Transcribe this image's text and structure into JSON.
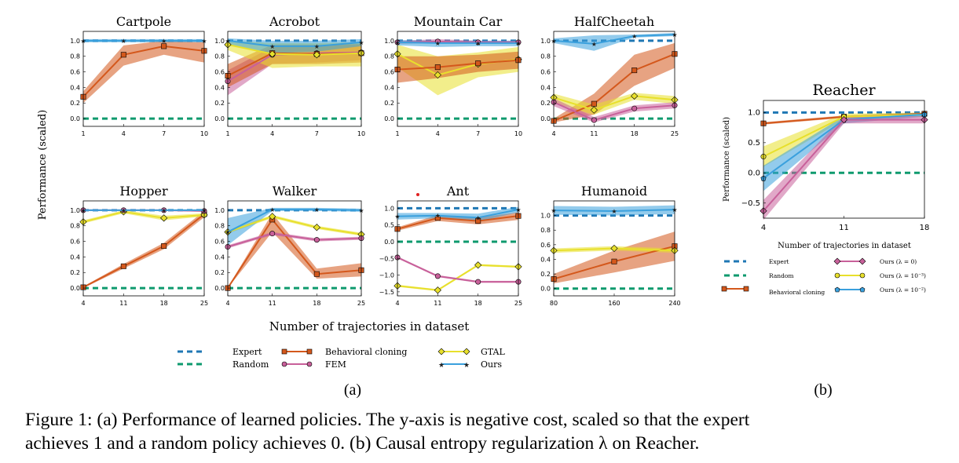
{
  "figure": {
    "ylabel": "Performance (scaled)",
    "xlabel": "Number of trajectories in dataset",
    "sublabel_a": "(a)",
    "sublabel_b": "(b)",
    "reacher_xlabel": "Number of trajectories in dataset"
  },
  "caption": {
    "line1": "Figure 1: (a) Performance of learned policies. The y-axis is negative cost, scaled so that the expert",
    "line2": "achieves 1 and a random policy achieves 0. (b) Causal entropy regularization λ on Reacher."
  },
  "colors": {
    "expert": "#1f77b4",
    "random": "#0e9a6e",
    "bc": "#d4581c",
    "fem": "#c8609a",
    "gtal": "#e8e02c",
    "ours": "#3aa0dd",
    "lam0": "#c8609a",
    "lam2": "#e8e02c",
    "lam1": "#3aa0dd"
  },
  "legend_a": {
    "expert": "Expert",
    "random": "Random",
    "bc": "Behavioral cloning",
    "fem": "FEM",
    "gtal": "GTAL",
    "ours": "Ours"
  },
  "legend_b": {
    "expert": "Expert",
    "random": "Random",
    "bc": "Behavioral cloning",
    "lam0": "Ours (λ = 0)",
    "lam2": "Ours (λ = 10⁻³)",
    "lam1": "Ours (λ = 10⁻²)"
  },
  "chart_data": [
    {
      "type": "line",
      "title": "Cartpole",
      "x": [
        1,
        4,
        7,
        10
      ],
      "xticks": [
        "1",
        "4",
        "7",
        "10"
      ],
      "ylim": [
        -0.1,
        1.12
      ],
      "yticks": [
        0.0,
        0.2,
        0.4,
        0.6,
        0.8,
        1.0
      ],
      "ytick_labels": [
        "0.0",
        "0.2",
        "0.4",
        "0.6",
        "0.8",
        "1.0"
      ],
      "series": [
        {
          "name": "Behavioral cloning",
          "key": "bc",
          "values": [
            0.28,
            0.82,
            0.93,
            0.87
          ],
          "lo": [
            0.2,
            0.68,
            0.82,
            0.72
          ],
          "hi": [
            0.35,
            0.94,
            1.0,
            0.98
          ]
        },
        {
          "name": "Ours",
          "key": "ours",
          "values": [
            1.0,
            1.0,
            1.0,
            1.0
          ],
          "lo": [
            0.98,
            0.98,
            0.98,
            0.98
          ],
          "hi": [
            1.02,
            1.02,
            1.02,
            1.02
          ]
        }
      ]
    },
    {
      "type": "line",
      "title": "Acrobot",
      "x": [
        1,
        4,
        7,
        10
      ],
      "xticks": [
        "1",
        "4",
        "7",
        "10"
      ],
      "ylim": [
        -0.1,
        1.12
      ],
      "yticks": [
        0.0,
        0.2,
        0.4,
        0.6,
        0.8,
        1.0
      ],
      "ytick_labels": [
        "0.0",
        "0.2",
        "0.4",
        "0.6",
        "0.8",
        "1.0"
      ],
      "series": [
        {
          "name": "FEM",
          "key": "fem",
          "values": [
            0.48,
            0.82,
            0.84,
            0.85
          ],
          "lo": [
            0.3,
            0.7,
            0.72,
            0.75
          ],
          "hi": [
            0.62,
            0.92,
            0.94,
            0.95
          ]
        },
        {
          "name": "Behavioral cloning",
          "key": "bc",
          "values": [
            0.55,
            0.84,
            0.83,
            0.84
          ],
          "lo": [
            0.4,
            0.7,
            0.7,
            0.72
          ],
          "hi": [
            0.7,
            0.95,
            0.95,
            0.96
          ]
        },
        {
          "name": "GTAL",
          "key": "gtal",
          "values": [
            0.95,
            0.83,
            0.82,
            0.84
          ],
          "lo": [
            0.88,
            0.65,
            0.67,
            0.67
          ],
          "hi": [
            1.0,
            0.97,
            0.97,
            0.98
          ]
        },
        {
          "name": "Ours",
          "key": "ours",
          "values": [
            1.0,
            0.93,
            0.93,
            0.98
          ],
          "lo": [
            0.95,
            0.84,
            0.86,
            0.93
          ],
          "hi": [
            1.03,
            1.0,
            1.0,
            1.02
          ]
        }
      ]
    },
    {
      "type": "line",
      "title": "Mountain Car",
      "x": [
        1,
        4,
        7,
        10
      ],
      "xticks": [
        "1",
        "4",
        "7",
        "10"
      ],
      "ylim": [
        -0.1,
        1.12
      ],
      "yticks": [
        0.0,
        0.2,
        0.4,
        0.6,
        0.8,
        1.0
      ],
      "ytick_labels": [
        "0.0",
        "0.2",
        "0.4",
        "0.6",
        "0.8",
        "1.0"
      ],
      "series": [
        {
          "name": "GTAL",
          "key": "gtal",
          "values": [
            0.83,
            0.56,
            0.7,
            0.76
          ],
          "lo": [
            0.66,
            0.3,
            0.53,
            0.6
          ],
          "hi": [
            0.95,
            0.8,
            0.85,
            0.92
          ]
        },
        {
          "name": "Behavioral cloning",
          "key": "bc",
          "values": [
            0.63,
            0.66,
            0.71,
            0.75
          ],
          "lo": [
            0.46,
            0.52,
            0.6,
            0.64
          ],
          "hi": [
            0.8,
            0.8,
            0.82,
            0.86
          ]
        },
        {
          "name": "FEM",
          "key": "fem",
          "values": [
            0.98,
            0.99,
            0.98,
            0.98
          ],
          "lo": [
            0.96,
            0.97,
            0.96,
            0.96
          ],
          "hi": [
            1.0,
            1.02,
            1.0,
            1.0
          ]
        },
        {
          "name": "Ours",
          "key": "ours",
          "values": [
            0.98,
            0.97,
            0.97,
            0.97
          ],
          "lo": [
            0.94,
            0.92,
            0.93,
            0.93
          ],
          "hi": [
            1.01,
            1.0,
            1.0,
            1.0
          ]
        }
      ]
    },
    {
      "type": "line",
      "title": "HalfCheetah",
      "x": [
        4,
        11,
        18,
        25
      ],
      "xticks": [
        "4",
        "11",
        "18",
        "25"
      ],
      "ylim": [
        -0.1,
        1.12
      ],
      "yticks": [
        0.0,
        0.2,
        0.4,
        0.6,
        0.8,
        1.0
      ],
      "ytick_labels": [
        "0.0",
        "0.2",
        "0.4",
        "0.6",
        "0.8",
        "1.0"
      ],
      "series": [
        {
          "name": "Behavioral cloning",
          "key": "bc",
          "values": [
            -0.03,
            0.19,
            0.62,
            0.83
          ],
          "lo": [
            -0.05,
            0.05,
            0.42,
            0.65
          ],
          "hi": [
            0.0,
            0.32,
            0.82,
            0.97
          ]
        },
        {
          "name": "GTAL",
          "key": "gtal",
          "values": [
            0.27,
            0.11,
            0.29,
            0.24
          ],
          "lo": [
            0.2,
            0.05,
            0.24,
            0.19
          ],
          "hi": [
            0.32,
            0.18,
            0.33,
            0.29
          ]
        },
        {
          "name": "FEM",
          "key": "fem",
          "values": [
            0.21,
            -0.02,
            0.13,
            0.17
          ],
          "lo": [
            0.16,
            -0.05,
            0.09,
            0.13
          ],
          "hi": [
            0.26,
            0.02,
            0.17,
            0.21
          ]
        },
        {
          "name": "Ours",
          "key": "ours",
          "values": [
            1.0,
            0.96,
            1.06,
            1.08
          ],
          "lo": [
            0.97,
            0.87,
            1.04,
            1.06
          ],
          "hi": [
            1.03,
            1.07,
            1.08,
            1.1
          ]
        }
      ]
    },
    {
      "type": "line",
      "title": "Hopper",
      "x": [
        4,
        11,
        18,
        25
      ],
      "xticks": [
        "4",
        "11",
        "18",
        "25"
      ],
      "ylim": [
        -0.1,
        1.12
      ],
      "yticks": [
        0.0,
        0.2,
        0.4,
        0.6,
        0.8,
        1.0
      ],
      "ytick_labels": [
        "0.0",
        "0.2",
        "0.4",
        "0.6",
        "0.8",
        "1.0"
      ],
      "series": [
        {
          "name": "Behavioral cloning",
          "key": "bc",
          "values": [
            0.01,
            0.28,
            0.54,
            0.95
          ],
          "lo": [
            0.0,
            0.25,
            0.5,
            0.91
          ],
          "hi": [
            0.02,
            0.31,
            0.58,
            0.99
          ]
        },
        {
          "name": "GTAL",
          "key": "gtal",
          "values": [
            0.85,
            0.98,
            0.9,
            0.94
          ],
          "lo": [
            0.83,
            0.96,
            0.87,
            0.92
          ],
          "hi": [
            0.87,
            1.0,
            0.93,
            0.96
          ]
        },
        {
          "name": "FEM",
          "key": "fem",
          "values": [
            1.0,
            1.0,
            1.0,
            0.99
          ],
          "lo": [
            0.99,
            0.99,
            0.99,
            0.98
          ],
          "hi": [
            1.01,
            1.01,
            1.01,
            1.0
          ]
        },
        {
          "name": "Ours",
          "key": "ours",
          "values": [
            1.0,
            1.0,
            1.0,
            1.0
          ],
          "lo": [
            0.99,
            0.99,
            0.99,
            0.99
          ],
          "hi": [
            1.01,
            1.01,
            1.01,
            1.01
          ]
        }
      ]
    },
    {
      "type": "line",
      "title": "Walker",
      "x": [
        4,
        11,
        18,
        25
      ],
      "xticks": [
        "4",
        "11",
        "18",
        "25"
      ],
      "ylim": [
        -0.1,
        1.12
      ],
      "yticks": [
        0.0,
        0.2,
        0.4,
        0.6,
        0.8,
        1.0
      ],
      "ytick_labels": [
        "0.0",
        "0.2",
        "0.4",
        "0.6",
        "0.8",
        "1.0"
      ],
      "series": [
        {
          "name": "Behavioral cloning",
          "key": "bc",
          "values": [
            0.0,
            0.88,
            0.18,
            0.23
          ],
          "lo": [
            0.0,
            0.72,
            0.12,
            0.15
          ],
          "hi": [
            0.01,
            0.96,
            0.25,
            0.32
          ]
        },
        {
          "name": "GTAL",
          "key": "gtal",
          "values": [
            0.72,
            0.92,
            0.78,
            0.69
          ],
          "lo": [
            0.7,
            0.9,
            0.76,
            0.67
          ],
          "hi": [
            0.74,
            0.94,
            0.8,
            0.71
          ]
        },
        {
          "name": "FEM",
          "key": "fem",
          "values": [
            0.53,
            0.7,
            0.62,
            0.64
          ],
          "lo": [
            0.51,
            0.68,
            0.6,
            0.62
          ],
          "hi": [
            0.55,
            0.72,
            0.64,
            0.66
          ]
        },
        {
          "name": "Ours",
          "key": "ours",
          "values": [
            0.72,
            1.01,
            1.01,
            1.0
          ],
          "lo": [
            0.55,
            0.99,
            0.99,
            0.98
          ],
          "hi": [
            0.9,
            1.03,
            1.03,
            1.02
          ]
        }
      ]
    },
    {
      "type": "line",
      "title": "Ant",
      "x": [
        4,
        11,
        18,
        25
      ],
      "xticks": [
        "4",
        "11",
        "18",
        "25"
      ],
      "ylim": [
        -1.62,
        1.22
      ],
      "yticks": [
        -1.5,
        -1.0,
        -0.5,
        0.0,
        0.5,
        1.0
      ],
      "ytick_labels": [
        "−1.5",
        "−1.0",
        "−0.5",
        "0.0",
        "0.5",
        "1.0"
      ],
      "series": [
        {
          "name": "Behavioral cloning",
          "key": "bc",
          "values": [
            0.38,
            0.71,
            0.62,
            0.77
          ],
          "lo": [
            0.33,
            0.62,
            0.52,
            0.65
          ],
          "hi": [
            0.43,
            0.8,
            0.72,
            0.88
          ]
        },
        {
          "name": "GTAL",
          "key": "gtal",
          "values": [
            -1.32,
            -1.45,
            -0.7,
            -0.75
          ],
          "lo": [
            -1.35,
            -1.48,
            -0.73,
            -0.78
          ],
          "hi": [
            -1.29,
            -1.42,
            -0.67,
            -0.72
          ]
        },
        {
          "name": "FEM",
          "key": "fem",
          "values": [
            -0.47,
            -1.03,
            -1.2,
            -1.2
          ],
          "lo": [
            -0.5,
            -1.06,
            -1.23,
            -1.23
          ],
          "hi": [
            -0.44,
            -1.0,
            -1.17,
            -1.17
          ]
        },
        {
          "name": "Ours",
          "key": "ours",
          "values": [
            0.76,
            0.78,
            0.72,
            0.96
          ],
          "lo": [
            0.66,
            0.7,
            0.6,
            0.88
          ],
          "hi": [
            0.86,
            0.86,
            0.84,
            1.04
          ]
        }
      ]
    },
    {
      "type": "line",
      "title": "Humanoid",
      "x": [
        80,
        160,
        240
      ],
      "xticks": [
        "80",
        "160",
        "240"
      ],
      "ylim": [
        -0.1,
        1.2
      ],
      "yticks": [
        0.0,
        0.2,
        0.4,
        0.6,
        0.8,
        1.0
      ],
      "ytick_labels": [
        "0.0",
        "0.2",
        "0.4",
        "0.6",
        "0.8",
        "1.0"
      ],
      "series": [
        {
          "name": "Behavioral cloning",
          "key": "bc",
          "values": [
            0.13,
            0.37,
            0.58
          ],
          "lo": [
            0.07,
            0.22,
            0.38
          ],
          "hi": [
            0.2,
            0.52,
            0.78
          ]
        },
        {
          "name": "GTAL",
          "key": "gtal",
          "values": [
            0.52,
            0.55,
            0.52
          ],
          "lo": [
            0.49,
            0.52,
            0.49
          ],
          "hi": [
            0.55,
            0.58,
            0.55
          ]
        },
        {
          "name": "Ours",
          "key": "ours",
          "values": [
            1.07,
            1.06,
            1.08
          ],
          "lo": [
            1.01,
            1.0,
            1.02
          ],
          "hi": [
            1.13,
            1.12,
            1.14
          ]
        }
      ]
    },
    {
      "type": "line",
      "title": "Reacher",
      "x": [
        4,
        11,
        18
      ],
      "xticks": [
        "4",
        "11",
        "18"
      ],
      "ylim": [
        -0.75,
        1.2
      ],
      "yticks": [
        -0.5,
        0.0,
        0.5,
        1.0
      ],
      "ytick_labels": [
        "−0.5",
        "0.0",
        "0.5",
        "1.0"
      ],
      "series": [
        {
          "name": "Behavioral cloning",
          "key": "bc",
          "values": [
            0.82,
            0.93,
            0.98
          ],
          "lo": [
            0.8,
            0.91,
            0.96
          ],
          "hi": [
            0.84,
            0.95,
            1.0
          ]
        },
        {
          "name": "Ours (λ = 10⁻³)",
          "key": "lam2",
          "values": [
            0.27,
            0.93,
            0.97
          ],
          "lo": [
            0.1,
            0.88,
            0.93
          ],
          "hi": [
            0.44,
            0.98,
            1.0
          ]
        },
        {
          "name": "Ours (λ = 10⁻²)",
          "key": "lam1",
          "values": [
            -0.09,
            0.88,
            0.97
          ],
          "lo": [
            -0.3,
            0.82,
            0.93
          ],
          "hi": [
            0.12,
            0.94,
            1.0
          ]
        },
        {
          "name": "Ours (λ = 0)",
          "key": "lam0",
          "values": [
            -0.63,
            0.88,
            0.88
          ],
          "lo": [
            -0.78,
            0.82,
            0.82
          ],
          "hi": [
            -0.45,
            0.94,
            0.94
          ]
        }
      ]
    }
  ]
}
